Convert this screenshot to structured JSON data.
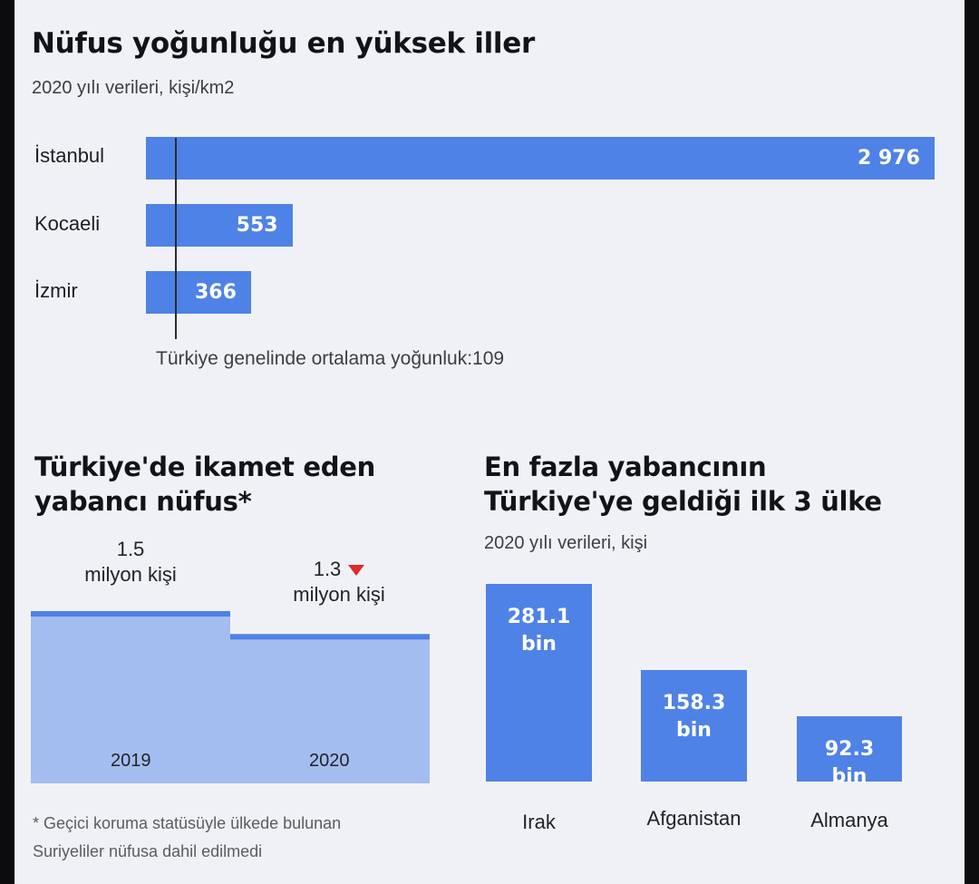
{
  "density": {
    "title": "Nüfus yoğunluğu en yüksek iller",
    "subtitle": "2020 yılı verileri, kişi/km2",
    "average_note": "Türkiye genelinde ortalama yoğunluk:109"
  },
  "foreign": {
    "title_line1": "Türkiye'de ikamet eden",
    "title_line2": "yabancı nüfus*",
    "value_2019": "1.5",
    "unit_2019": "milyon kişi",
    "value_2020": "1.3",
    "unit_2020": "milyon kişi",
    "year_2019": "2019",
    "year_2020": "2020",
    "footnote_line1": "* Geçici koruma statüsüyle ülkede bulunan",
    "footnote_line2": "Suriyeliler nüfusa dahil edilmedi"
  },
  "countries": {
    "title_line1": "En fazla yabancının",
    "title_line2": "Türkiye'ye geldiği ilk 3 ülke",
    "subtitle": "2020 yılı verileri, kişi",
    "bar_labels": [
      {
        "num": "281.1",
        "unit": "bin"
      },
      {
        "num": "158.3",
        "unit": "bin"
      },
      {
        "num": "92.3",
        "unit": "bin"
      }
    ]
  },
  "colors": {
    "bar": "#4f82e6",
    "area": "#a3bdf0",
    "area_top": "#4f82e6",
    "down": "#e02b2b"
  },
  "chart_data": [
    {
      "type": "bar",
      "orientation": "horizontal",
      "title": "Nüfus yoğunluğu en yüksek iller",
      "subtitle": "2020 yılı verileri, kişi/km2",
      "categories": [
        "İstanbul",
        "Kocaeli",
        "İzmir"
      ],
      "values": [
        2976,
        553,
        366
      ],
      "value_labels": [
        "2 976",
        "553",
        "366"
      ],
      "reference_line": {
        "value": 109,
        "label": "Türkiye genelinde ortalama yoğunluk:109"
      },
      "xlim": [
        0,
        2976
      ]
    },
    {
      "type": "area",
      "title": "Türkiye'de ikamet eden yabancı nüfus*",
      "categories": [
        "2019",
        "2020"
      ],
      "values": [
        1.5,
        1.3
      ],
      "unit": "milyon kişi",
      "ylim": [
        0,
        1.5
      ]
    },
    {
      "type": "bar",
      "title": "En fazla yabancının Türkiye'ye geldiği ilk 3 ülke",
      "subtitle": "2020 yılı verileri, kişi",
      "categories": [
        "Irak",
        "Afganistan",
        "Almanya"
      ],
      "values": [
        281.1,
        158.3,
        92.3
      ],
      "unit": "bin",
      "ylim": [
        0,
        281.1
      ]
    }
  ]
}
